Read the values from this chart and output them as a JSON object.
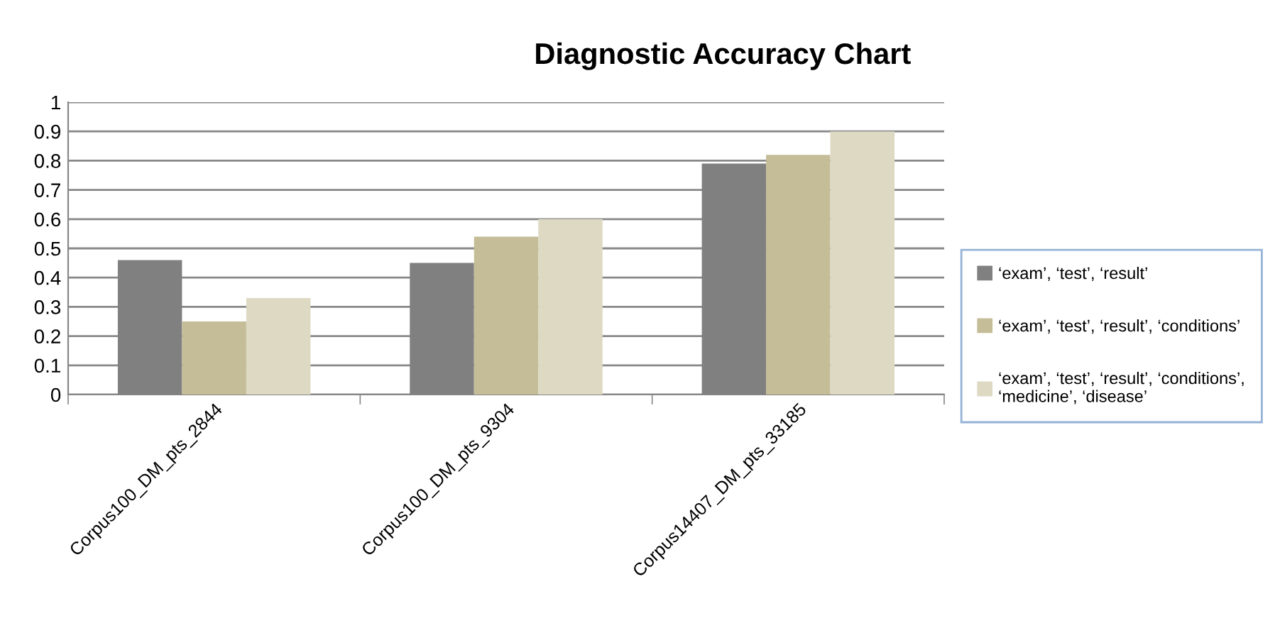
{
  "chart_data": {
    "type": "bar",
    "title": "Diagnostic Accuracy Chart",
    "categories": [
      "Corpus100_DM_pts_2844",
      "Corpus100_DM_pts_9304",
      "Corpus14407_DM_pts_33185"
    ],
    "series": [
      {
        "name": "‘exam’, ‘test’, ‘result’",
        "color": "#808080",
        "values": [
          0.46,
          0.45,
          0.79
        ]
      },
      {
        "name": "‘exam’, ‘test’, ‘result’, ‘conditions’",
        "color": "#c4bd97",
        "values": [
          0.25,
          0.54,
          0.82
        ]
      },
      {
        "name": "‘exam’, ‘test’, ‘result’, ‘conditions’,\n‘medicine’, ‘disease’",
        "color": "#ddd9c3",
        "values": [
          0.33,
          0.6,
          0.9
        ]
      }
    ],
    "ylim": [
      0,
      1
    ],
    "yticks": [
      0,
      0.1,
      0.2,
      0.3,
      0.4,
      0.5,
      0.6,
      0.7,
      0.8,
      0.9,
      1
    ],
    "grid": "y",
    "legend": "right"
  }
}
